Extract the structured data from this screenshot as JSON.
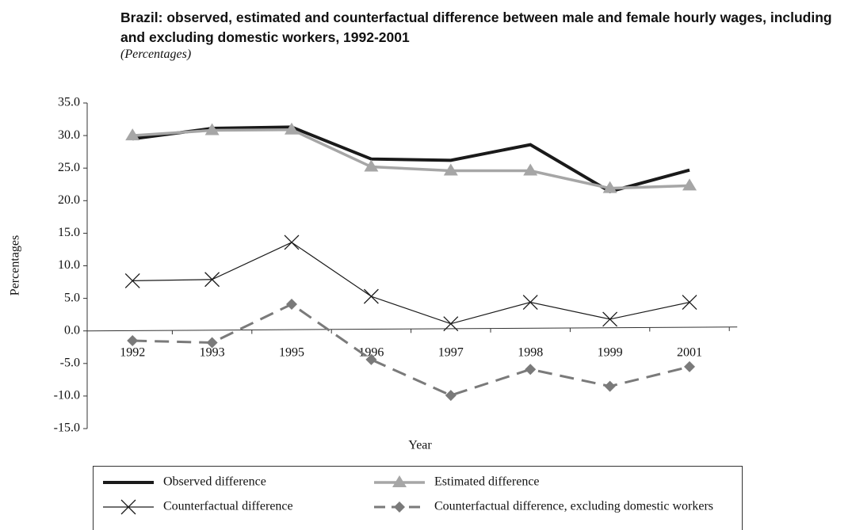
{
  "chart_data": {
    "type": "line",
    "title": "Brazil:  observed, estimated and counterfactual difference between male and female hourly wages, including and excluding domestic workers, 1992-2001",
    "subtitle": "(Percentages)",
    "x_label": "Year",
    "y_label": "Percentages",
    "categories": [
      "1992",
      "1993",
      "1995",
      "1996",
      "1997",
      "1998",
      "1999",
      "2001"
    ],
    "ylim": [
      -15,
      35
    ],
    "yticks": [
      {
        "value": -15,
        "label": "-15.0"
      },
      {
        "value": -10,
        "label": "-10.0"
      },
      {
        "value": -5,
        "label": "-5.0"
      },
      {
        "value": 0,
        "label": "0.0"
      },
      {
        "value": 5,
        "label": "5.0"
      },
      {
        "value": 10,
        "label": "10.0"
      },
      {
        "value": 15,
        "label": "15.0"
      },
      {
        "value": 20,
        "label": "20.0"
      },
      {
        "value": 25,
        "label": "25.0"
      },
      {
        "value": 30,
        "label": "30.0"
      },
      {
        "value": 35,
        "label": "35.0"
      }
    ],
    "grid": false,
    "series": [
      {
        "name": "Observed difference",
        "color": "#1a1a1a",
        "marker": "none",
        "dashed": false,
        "values": [
          29.5,
          31.1,
          31.3,
          26.4,
          26.2,
          28.6,
          21.4,
          24.7
        ]
      },
      {
        "name": "Estimated difference",
        "color": "#a6a6a6",
        "marker": "triangle",
        "dashed": false,
        "values": [
          30.0,
          30.8,
          30.9,
          25.2,
          24.6,
          24.6,
          21.9,
          22.3
        ]
      },
      {
        "name": "Counterfactual difference",
        "color": "#1a1a1a",
        "marker": "x",
        "dashed": false,
        "values": [
          7.7,
          7.9,
          13.6,
          5.3,
          1.1,
          4.4,
          1.8,
          4.4
        ]
      },
      {
        "name": "Counterfactual difference, excluding domestic workers",
        "color": "#7a7a7a",
        "marker": "diamond",
        "dashed": true,
        "values": [
          -1.5,
          -1.8,
          4.1,
          -4.4,
          -9.9,
          -5.9,
          -8.5,
          -5.5
        ]
      }
    ]
  }
}
